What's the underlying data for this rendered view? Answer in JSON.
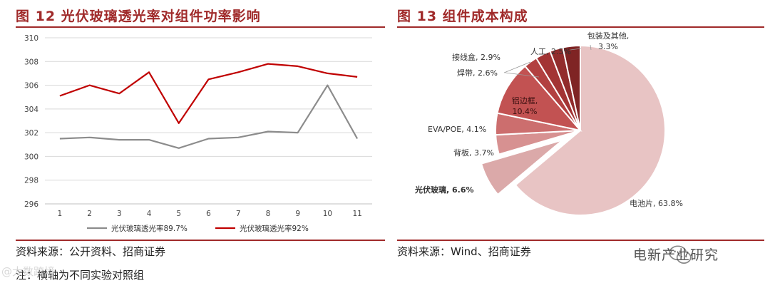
{
  "left": {
    "title": "图 12  光伏玻璃透光率对组件功率影响",
    "source": "资料来源：公开资料、招商证券",
    "note": "注：横轴为不同实验对照组",
    "watermark": "@大数跨境"
  },
  "right": {
    "title": "图 13  组件成本构成",
    "source": "资料来源：Wind、招商证券"
  },
  "wechat_account": "电新产业研究",
  "colors": {
    "accent": "#a02a2a",
    "grid": "#d9d9d9"
  },
  "chart_data": [
    {
      "type": "line",
      "title": "",
      "x": [
        1,
        2,
        3,
        4,
        5,
        6,
        7,
        8,
        9,
        10,
        11
      ],
      "ylim": [
        296,
        310
      ],
      "yticks": [
        296,
        298,
        300,
        302,
        304,
        306,
        308,
        310
      ],
      "grid": true,
      "legend": "bottom",
      "series": [
        {
          "name": "光伏玻璃透光率89.7%",
          "color": "#8c8c8c",
          "values": [
            301.5,
            301.6,
            301.4,
            301.4,
            300.7,
            301.5,
            301.6,
            302.1,
            302.0,
            306.0,
            301.5
          ]
        },
        {
          "name": "光伏玻璃透光率92%",
          "color": "#c00000",
          "values": [
            305.1,
            306.0,
            305.3,
            307.1,
            302.8,
            306.5,
            307.1,
            307.8,
            307.6,
            307.0,
            306.7
          ]
        }
      ]
    },
    {
      "type": "pie",
      "title": "",
      "slices": [
        {
          "label": "电池片",
          "value": 63.8,
          "display": "电池片, 63.8%",
          "color": "#e8c4c4"
        },
        {
          "label": "光伏玻璃",
          "value": 6.6,
          "display": "光伏玻璃, 6.6%",
          "color": "#dba9a9",
          "exploded": true
        },
        {
          "label": "背板",
          "value": 3.7,
          "display": "背板, 3.7%",
          "color": "#d79191"
        },
        {
          "label": "EVA/POE",
          "value": 4.1,
          "display": "EVA/POE, 4.1%",
          "color": "#cc6e6e"
        },
        {
          "label": "铝边框",
          "value": 10.4,
          "display": [
            "铝边框,",
            "10.4%"
          ],
          "color": "#c25252"
        },
        {
          "label": "焊带",
          "value": 2.6,
          "display": "焊带, 2.6%",
          "color": "#b24040"
        },
        {
          "label": "接线盒",
          "value": 2.9,
          "display": "接线盒, 2.9%",
          "color": "#a33434"
        },
        {
          "label": "人工",
          "value": 2.5,
          "display": "人工, 2.5%",
          "color": "#922c2c"
        },
        {
          "label": "包装及其他",
          "value": 3.3,
          "display": [
            "包装及其他,",
            "3.3%"
          ],
          "color": "#7f2424"
        }
      ]
    }
  ]
}
